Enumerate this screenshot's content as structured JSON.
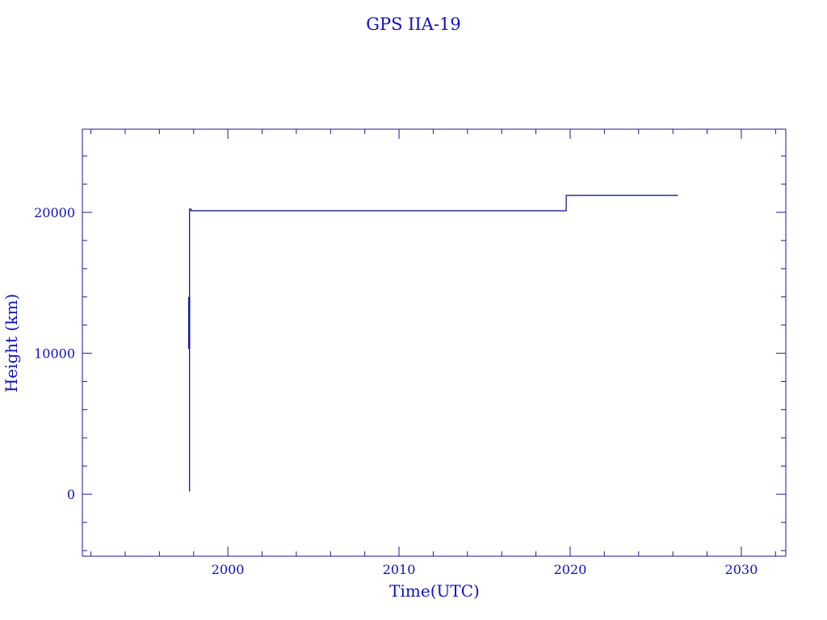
{
  "chart_data": {
    "type": "line",
    "title": "GPS IIA-19",
    "xlabel": "Time(UTC)",
    "ylabel": "Height (km)",
    "xlim": [
      1991.5,
      2032.6
    ],
    "ylim": [
      -4400,
      25900
    ],
    "x_ticks": [
      2000,
      2010,
      2020,
      2030
    ],
    "x_tick_labels": [
      "2000",
      "2010",
      "2020",
      "2030"
    ],
    "x_minor_step": 2,
    "y_ticks": [
      0,
      10000,
      20000
    ],
    "y_tick_labels": [
      "0",
      "10000",
      "20000"
    ],
    "y_minor_step": 2000,
    "grid": false,
    "colors": {
      "axis": "#1a1a9a",
      "line": "#1a1a8c",
      "text": "#1010c0"
    },
    "series": [
      {
        "points": [
          [
            1997.76,
            200
          ],
          [
            1997.76,
            20230
          ],
          [
            1997.85,
            20230
          ],
          [
            1997.85,
            20110
          ],
          [
            2019.77,
            20110
          ],
          [
            2019.77,
            21200
          ],
          [
            2026.3,
            21200
          ]
        ]
      },
      {
        "points": [
          [
            1997.74,
            10300
          ],
          [
            1997.74,
            14000
          ]
        ],
        "emphasis": true
      }
    ]
  }
}
